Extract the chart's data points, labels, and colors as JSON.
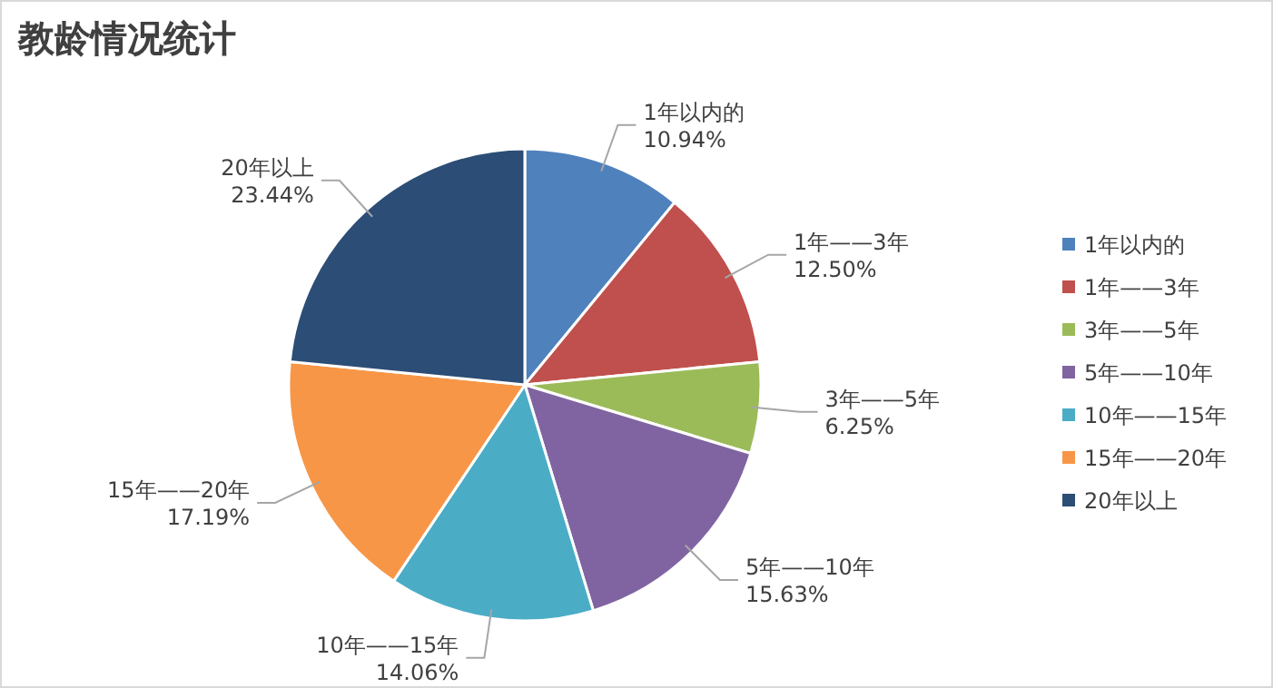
{
  "chart_data": {
    "type": "pie",
    "title": "教龄情况统计",
    "categories": [
      "1年以内的",
      "1年——3年",
      "3年——5年",
      "5年——10年",
      "10年——15年",
      "15年——20年",
      "20年以上"
    ],
    "values": [
      10.94,
      12.5,
      6.25,
      15.63,
      14.06,
      17.19,
      23.44
    ],
    "colors": [
      "#4f81bd",
      "#c0504d",
      "#9bbb59",
      "#8064a2",
      "#4bacc6",
      "#f79646",
      "#2c4d75"
    ],
    "value_labels": [
      "10.94%",
      "12.50%",
      "6.25%",
      "15.63%",
      "14.06%",
      "17.19%",
      "23.44%"
    ],
    "legend": "right"
  }
}
